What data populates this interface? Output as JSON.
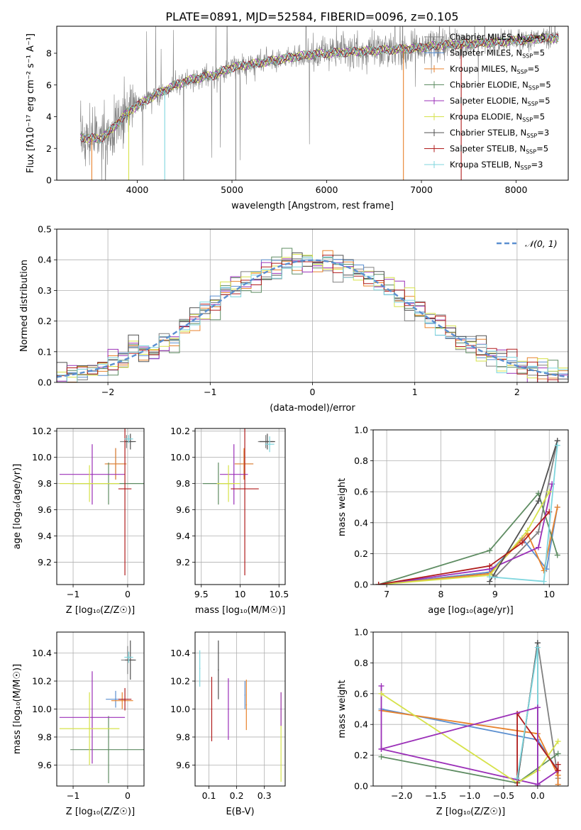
{
  "figure_title": "PLATE=0891, MJD=52584, FIBERID=0096, z=0.105",
  "model_colors": {
    "Chabrier MILES": "#808080",
    "Salpeter MILES": "#5b8fd0",
    "Kroupa MILES": "#e8822c",
    "Chabrier ELODIE": "#5e8c62",
    "Salpeter ELODIE": "#9b30b8",
    "Kroupa ELODIE": "#d6e24a",
    "Chabrier STELIB": "#505050",
    "Salpeter STELIB": "#b01c1c",
    "Kroupa STELIB": "#7fd6de"
  },
  "chart_data": [
    {
      "id": "spectrum",
      "type": "line",
      "title": "PLATE=0891, MJD=52584, FIBERID=0096, z=0.105",
      "xlabel": "wavelength [Angstrom, rest frame]",
      "ylabel": "Flux [fλ10⁻¹⁷ erg cm⁻² s⁻¹ A⁻¹]",
      "xlim": [
        3150,
        8550
      ],
      "ylim": [
        0,
        9.7
      ],
      "xticks": [
        4000,
        5000,
        6000,
        7000,
        8000
      ],
      "yticks": [
        0,
        2,
        4,
        6,
        8
      ],
      "grid": false,
      "legend_position": "right",
      "legend": [
        "Chabrier MILES, N_SSP=5",
        "Salpeter MILES, N_SSP=5",
        "Kroupa MILES, N_SSP=5",
        "Chabrier ELODIE, N_SSP=5",
        "Salpeter ELODIE, N_SSP=5",
        "Kroupa ELODIE, N_SSP=5",
        "Chabrier STELIB, N_SSP=3",
        "Salpeter STELIB, N_SSP=5",
        "Kroupa STELIB, N_SSP=3"
      ],
      "continuum_knots": [
        [
          3400,
          2.7
        ],
        [
          3600,
          2.6
        ],
        [
          3700,
          3.0
        ],
        [
          3900,
          4.3
        ],
        [
          4000,
          4.7
        ],
        [
          4200,
          5.4
        ],
        [
          4400,
          6.0
        ],
        [
          4600,
          6.4
        ],
        [
          4800,
          6.6
        ],
        [
          5000,
          7.1
        ],
        [
          5200,
          7.3
        ],
        [
          5500,
          7.6
        ],
        [
          5800,
          7.9
        ],
        [
          6000,
          8.0
        ],
        [
          6300,
          8.1
        ],
        [
          6600,
          8.2
        ],
        [
          6900,
          8.3
        ],
        [
          7200,
          8.5
        ],
        [
          7500,
          8.6
        ],
        [
          7800,
          8.7
        ],
        [
          8200,
          8.9
        ],
        [
          8500,
          9.0
        ]
      ]
    },
    {
      "id": "residuals",
      "type": "histogram",
      "xlabel": "(data-model)/error",
      "ylabel": "Normed distribution",
      "xlim": [
        -2.5,
        2.5
      ],
      "ylim": [
        0,
        0.5
      ],
      "xticks": [
        -2,
        -1,
        0,
        1,
        2
      ],
      "yticks": [
        0.0,
        0.1,
        0.2,
        0.3,
        0.4,
        0.5
      ],
      "grid": true,
      "legend_position": "top-right",
      "legend": [
        "𝒩(0, 1)"
      ],
      "bin_width": 0.1,
      "curve": "normal pdf, mean 0, sigma 1"
    },
    {
      "id": "age_vs_Z",
      "type": "scatter",
      "xlabel": "Z [log₁₀(Z/Z☉)]",
      "ylabel": "age  [log₁₀(age/yr)]",
      "xlim": [
        -1.3,
        0.3
      ],
      "ylim": [
        9.03,
        10.22
      ],
      "xticks": [
        -1,
        0
      ],
      "yticks": [
        9.2,
        9.4,
        9.6,
        9.8,
        10.0,
        10.2
      ],
      "grid": true,
      "points": [
        {
          "model": "Chabrier MILES",
          "x": -0.02,
          "y": 10.12,
          "xerr": 0.12,
          "yerr": 0.05
        },
        {
          "model": "Salpeter MILES",
          "x": -0.22,
          "y": 9.95,
          "xerr": 0.18,
          "yerr": 0.12
        },
        {
          "model": "Kroupa MILES",
          "x": -0.22,
          "y": 9.95,
          "xerr": 0.2,
          "yerr": 0.12
        },
        {
          "model": "Chabrier ELODIE",
          "x": -0.35,
          "y": 9.8,
          "xerr": 0.7,
          "yerr": 0.16
        },
        {
          "model": "Salpeter ELODIE",
          "x": -0.65,
          "y": 9.87,
          "xerr": 0.6,
          "yerr": 0.23
        },
        {
          "model": "Kroupa ELODIE",
          "x": -0.7,
          "y": 9.8,
          "xerr": 0.55,
          "yerr": 0.14
        },
        {
          "model": "Chabrier STELIB",
          "x": 0.05,
          "y": 10.12,
          "xerr": 0.1,
          "yerr": 0.06
        },
        {
          "model": "Salpeter STELIB",
          "x": -0.05,
          "y": 9.76,
          "xerr": 0.12,
          "yerr": 0.66
        },
        {
          "model": "Kroupa STELIB",
          "x": 0.02,
          "y": 10.14,
          "xerr": 0.08,
          "yerr": 0.03
        }
      ]
    },
    {
      "id": "age_vs_mass",
      "type": "scatter",
      "xlabel": "mass [log₁₀(M/M☉)]",
      "xlim": [
        9.42,
        10.58
      ],
      "ylim": [
        9.03,
        10.22
      ],
      "xticks": [
        9.5,
        10.0,
        10.5
      ],
      "yticks": [
        9.2,
        9.4,
        9.6,
        9.8,
        10.0,
        10.2
      ],
      "grid": true,
      "points": [
        {
          "model": "Chabrier MILES",
          "x": 10.33,
          "y": 10.12,
          "xerr": 0.1,
          "yerr": 0.05
        },
        {
          "model": "Salpeter MILES",
          "x": 10.05,
          "y": 9.95,
          "xerr": 0.12,
          "yerr": 0.1
        },
        {
          "model": "Kroupa MILES",
          "x": 10.05,
          "y": 9.95,
          "xerr": 0.12,
          "yerr": 0.12
        },
        {
          "model": "Chabrier ELODIE",
          "x": 9.72,
          "y": 9.8,
          "xerr": 0.2,
          "yerr": 0.16
        },
        {
          "model": "Salpeter ELODIE",
          "x": 9.92,
          "y": 9.87,
          "xerr": 0.18,
          "yerr": 0.23
        },
        {
          "model": "Kroupa ELODIE",
          "x": 9.85,
          "y": 9.8,
          "xerr": 0.15,
          "yerr": 0.14
        },
        {
          "model": "Chabrier STELIB",
          "x": 10.35,
          "y": 10.12,
          "xerr": 0.1,
          "yerr": 0.06
        },
        {
          "model": "Salpeter STELIB",
          "x": 10.06,
          "y": 9.76,
          "xerr": 0.18,
          "yerr": 0.66
        },
        {
          "model": "Kroupa STELIB",
          "x": 10.38,
          "y": 10.1,
          "xerr": 0.06,
          "yerr": 0.06
        }
      ]
    },
    {
      "id": "weight_vs_age",
      "type": "line",
      "xlabel": "age  [log₁₀(age/yr)]",
      "ylabel": "mass weight",
      "xlim": [
        6.75,
        10.35
      ],
      "ylim": [
        0,
        1.0
      ],
      "xticks": [
        7,
        8,
        9,
        10
      ],
      "yticks": [
        0.0,
        0.2,
        0.4,
        0.6,
        0.8,
        1.0
      ],
      "grid": true,
      "series": [
        {
          "model": "Chabrier MILES",
          "x": [
            6.85,
            8.9,
            9.0,
            9.8,
            10.15
          ],
          "y": [
            0.0,
            0.08,
            0.05,
            0.34,
            0.93
          ]
        },
        {
          "model": "Salpeter MILES",
          "x": [
            6.85,
            8.9,
            9.5,
            9.95,
            10.15
          ],
          "y": [
            0.0,
            0.08,
            0.3,
            0.1,
            0.5
          ]
        },
        {
          "model": "Kroupa MILES",
          "x": [
            6.85,
            8.9,
            9.6,
            9.9,
            10.15
          ],
          "y": [
            0.0,
            0.07,
            0.33,
            0.09,
            0.5
          ]
        },
        {
          "model": "Chabrier ELODIE",
          "x": [
            6.85,
            8.9,
            9.8,
            10.15
          ],
          "y": [
            0.0,
            0.22,
            0.59,
            0.19
          ]
        },
        {
          "model": "Salpeter ELODIE",
          "x": [
            6.85,
            8.9,
            9.8,
            10.05
          ],
          "y": [
            0.0,
            0.1,
            0.24,
            0.65
          ]
        },
        {
          "model": "Kroupa ELODIE",
          "x": [
            6.85,
            8.9,
            9.6,
            10.0
          ],
          "y": [
            0.0,
            0.06,
            0.35,
            0.6
          ]
        },
        {
          "model": "Chabrier STELIB",
          "x": [
            8.9,
            9.8,
            10.15
          ],
          "y": [
            0.02,
            0.54,
            0.93
          ]
        },
        {
          "model": "Salpeter STELIB",
          "x": [
            6.85,
            8.9,
            9.5,
            10.0
          ],
          "y": [
            0.0,
            0.12,
            0.27,
            0.47
          ]
        },
        {
          "model": "Kroupa STELIB",
          "x": [
            8.9,
            9.9,
            10.15
          ],
          "y": [
            0.05,
            0.02,
            0.9
          ]
        }
      ]
    },
    {
      "id": "mass_vs_Z",
      "type": "scatter",
      "xlabel": "Z [log₁₀(Z/Z☉)]",
      "ylabel": "mass [log₁₀(M/M☉)]",
      "xlim": [
        -1.3,
        0.3
      ],
      "ylim": [
        9.45,
        10.55
      ],
      "xticks": [
        -1,
        0
      ],
      "yticks": [
        9.6,
        9.8,
        10.0,
        10.2,
        10.4
      ],
      "grid": true,
      "points": [
        {
          "model": "Chabrier MILES",
          "x": 0.0,
          "y": 10.35,
          "xerr": 0.12,
          "yerr": 0.1
        },
        {
          "model": "Salpeter MILES",
          "x": -0.22,
          "y": 10.07,
          "xerr": 0.18,
          "yerr": 0.06
        },
        {
          "model": "Kroupa MILES",
          "x": -0.1,
          "y": 10.06,
          "xerr": 0.2,
          "yerr": 0.06
        },
        {
          "model": "Chabrier ELODIE",
          "x": -0.35,
          "y": 9.71,
          "xerr": 0.7,
          "yerr": 0.24
        },
        {
          "model": "Salpeter ELODIE",
          "x": -0.65,
          "y": 9.94,
          "xerr": 0.6,
          "yerr": 0.33
        },
        {
          "model": "Kroupa ELODIE",
          "x": -0.7,
          "y": 9.86,
          "xerr": 0.55,
          "yerr": 0.26
        },
        {
          "model": "Chabrier STELIB",
          "x": 0.05,
          "y": 10.35,
          "xerr": 0.1,
          "yerr": 0.14
        },
        {
          "model": "Salpeter STELIB",
          "x": -0.05,
          "y": 10.07,
          "xerr": 0.12,
          "yerr": 0.08
        },
        {
          "model": "Kroupa STELIB",
          "x": 0.02,
          "y": 10.37,
          "xerr": 0.08,
          "yerr": 0.04
        }
      ]
    },
    {
      "id": "mass_vs_ebv",
      "type": "scatter",
      "xlabel": "E(B-V)",
      "xlim": [
        0.05,
        0.375
      ],
      "ylim": [
        9.45,
        10.55
      ],
      "xticks": [
        0.1,
        0.2,
        0.3
      ],
      "yticks": [
        9.6,
        9.8,
        10.0,
        10.2,
        10.4
      ],
      "grid": true,
      "points": [
        {
          "model": "Chabrier STELIB",
          "x": 0.134,
          "y": 10.28,
          "yerr": 0.21
        },
        {
          "model": "Kroupa STELIB",
          "x": 0.067,
          "y": 10.29,
          "yerr": 0.13
        },
        {
          "model": "Salpeter STELIB",
          "x": 0.11,
          "y": 10.0,
          "yerr": 0.23
        },
        {
          "model": "Salpeter MILES",
          "x": 0.23,
          "y": 10.1,
          "yerr": 0.1
        },
        {
          "model": "Kroupa MILES",
          "x": 0.235,
          "y": 10.03,
          "yerr": 0.18
        },
        {
          "model": "Salpeter ELODIE",
          "x": 0.17,
          "y": 10.0,
          "yerr": 0.22
        },
        {
          "model": "Kroupa ELODIE",
          "x": 0.36,
          "y": 9.8,
          "yerr": 0.32
        },
        {
          "model": "Salpeter ELODIE",
          "x": 0.36,
          "y": 10.0,
          "yerr": 0.12
        }
      ]
    },
    {
      "id": "weight_vs_Z",
      "type": "line",
      "xlabel": "Z [log₁₀(Z/Z☉)]",
      "ylabel": "mass weight",
      "xlim": [
        -2.42,
        0.45
      ],
      "ylim": [
        0,
        1.0
      ],
      "xticks": [
        -2.0,
        -1.5,
        -1.0,
        -0.5,
        0.0
      ],
      "yticks": [
        0.0,
        0.2,
        0.4,
        0.6,
        0.8,
        1.0
      ],
      "grid": true,
      "series": [
        {
          "model": "Chabrier MILES",
          "x": [
            -0.3,
            0.0,
            0.3
          ],
          "y": [
            0.02,
            0.93,
            0.05
          ]
        },
        {
          "model": "Salpeter MILES",
          "x": [
            -2.3,
            0.0,
            0.3,
            0.3
          ],
          "y": [
            0.5,
            0.3,
            0.1,
            0.01
          ]
        },
        {
          "model": "Kroupa MILES",
          "x": [
            -2.3,
            0.0,
            0.3,
            0.3
          ],
          "y": [
            0.49,
            0.34,
            0.07,
            0.01
          ]
        },
        {
          "model": "Chabrier ELODIE",
          "x": [
            -2.3,
            -0.3,
            0.3
          ],
          "y": [
            0.19,
            0.02,
            0.21
          ]
        },
        {
          "model": "Salpeter ELODIE",
          "x": [
            -2.3,
            -2.3,
            0.0,
            0.3
          ],
          "y": [
            0.65,
            0.24,
            0.01,
            0.1
          ]
        },
        {
          "model": "Kroupa ELODIE",
          "x": [
            -2.3,
            -0.3,
            0.0,
            0.3
          ],
          "y": [
            0.6,
            0.02,
            0.1,
            0.29
          ]
        },
        {
          "model": "Chabrier STELIB",
          "x": [
            -0.3,
            0.0,
            0.0
          ],
          "y": [
            0.02,
            0.93,
            0.0
          ]
        },
        {
          "model": "Salpeter STELIB",
          "x": [
            -0.3,
            -0.3,
            0.3,
            0.3
          ],
          "y": [
            0.0,
            0.47,
            0.1,
            0.14
          ]
        },
        {
          "model": "Kroupa STELIB",
          "x": [
            -0.3,
            0.0,
            0.0
          ],
          "y": [
            0.05,
            0.9,
            0.0
          ]
        }
      ],
      "extra_lines": [
        {
          "model": "Salpeter ELODIE",
          "x": [
            -2.3,
            0.0
          ],
          "y": [
            0.24,
            0.51
          ]
        },
        {
          "model": "Salpeter ELODIE",
          "x": [
            0.0,
            0.0
          ],
          "y": [
            0.51,
            0.0
          ]
        }
      ]
    }
  ]
}
